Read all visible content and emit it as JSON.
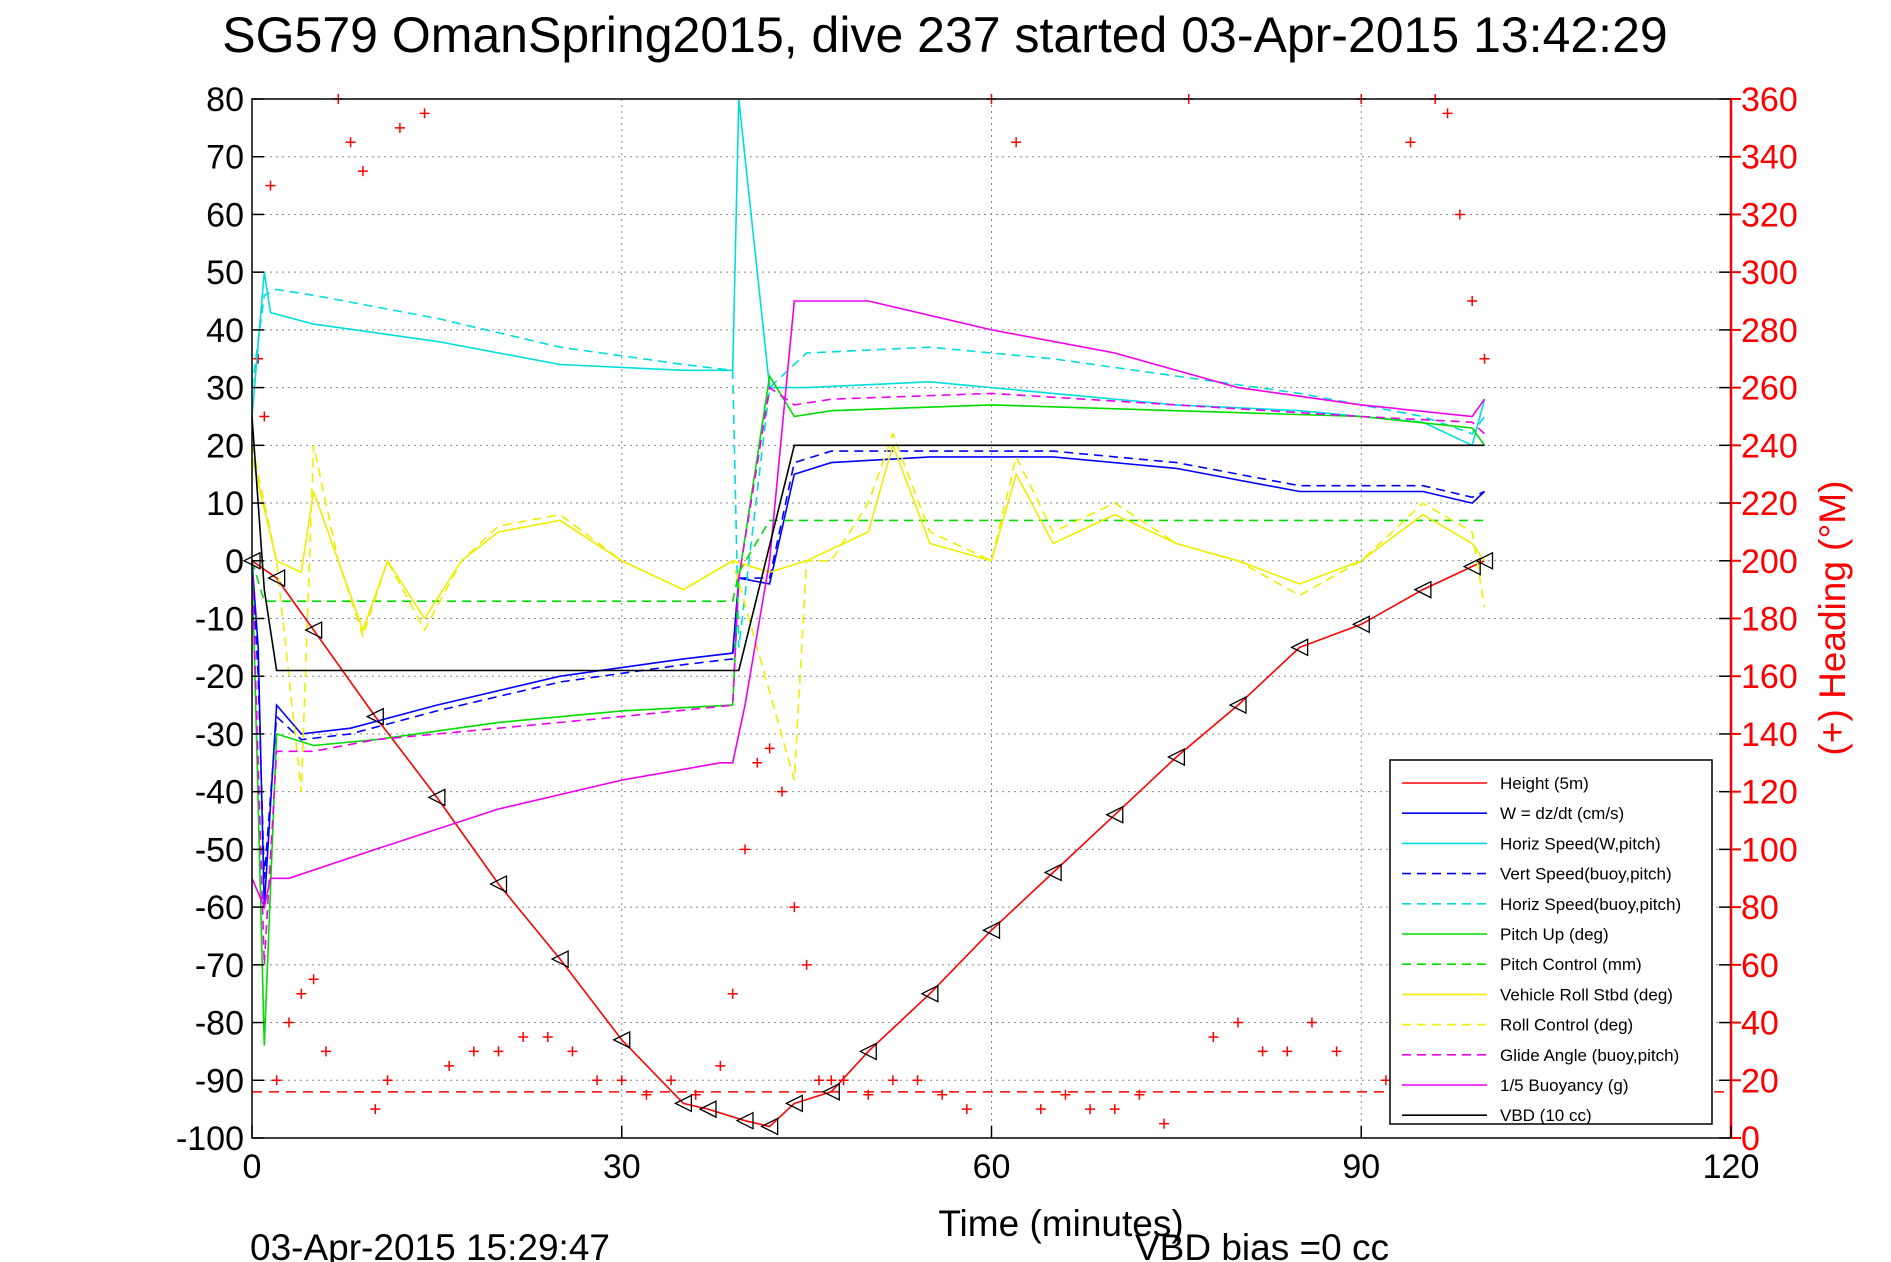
{
  "chart_data": {
    "type": "line",
    "title": "SG579 OmanSpring2015, dive 237 started 03-Apr-2015 13:42:29",
    "xlabel": "Time (minutes)",
    "ylabel_left": "",
    "ylabel_right": "(+) Heading (°M)",
    "footer_left": "03-Apr-2015 15:29:47",
    "footer_right": "VBD bias =0 cc",
    "xlim": [
      0,
      120
    ],
    "ylim_left": [
      -100,
      80
    ],
    "ylim_right": [
      0,
      360
    ],
    "xticks": [
      0,
      30,
      60,
      90,
      120
    ],
    "xtick_labels": [
      "0",
      "30",
      "60",
      "90",
      "120"
    ],
    "yticks_left": [
      80,
      70,
      60,
      50,
      40,
      30,
      20,
      10,
      0,
      -10,
      -20,
      -30,
      -40,
      -50,
      -60,
      -70,
      -80,
      -90,
      -100
    ],
    "ytick_labels_left": [
      "80",
      "70",
      "60",
      "50",
      "40",
      "30",
      "20",
      "10",
      "0",
      "-10",
      "-20",
      "-30",
      "-40",
      "-50",
      "-60",
      "-70",
      "-80",
      "-90",
      "-100"
    ],
    "yticks_right": [
      360,
      340,
      320,
      300,
      280,
      260,
      240,
      220,
      200,
      180,
      160,
      140,
      120,
      100,
      80,
      60,
      40,
      20,
      0
    ],
    "ytick_labels_right": [
      "360",
      "340",
      "320",
      "300",
      "280",
      "260",
      "240",
      "220",
      "200",
      "180",
      "160",
      "140",
      "120",
      "100",
      "80",
      "60",
      "40",
      "20",
      "0"
    ],
    "grid": true,
    "legend_position": "bottom-right",
    "series": [
      {
        "name": "Height (5m)",
        "color": "#ff0000",
        "style": "solid",
        "x": [
          0,
          2,
          5,
          10,
          15,
          20,
          25,
          30,
          35,
          37,
          40,
          42,
          44,
          47,
          50,
          55,
          60,
          65,
          70,
          75,
          80,
          85,
          90,
          95,
          99,
          100
        ],
        "y": [
          0,
          -3,
          -12,
          -27,
          -41,
          -56,
          -69,
          -83,
          -94,
          -95,
          -97,
          -98,
          -94,
          -92,
          -85,
          -75,
          -64,
          -54,
          -44,
          -34,
          -25,
          -15,
          -11,
          -5,
          -1,
          0
        ]
      },
      {
        "name": "W = dz/dt (cm/s)",
        "color": "#0000ff",
        "style": "solid",
        "x": [
          0,
          0.5,
          1,
          2,
          4,
          8,
          15,
          25,
          35,
          39,
          39.5,
          42,
          44,
          47,
          55,
          65,
          75,
          85,
          95,
          99,
          100
        ],
        "y": [
          0,
          -15,
          -60,
          -25,
          -30,
          -29,
          -25,
          -20,
          -17,
          -16,
          -3,
          -4,
          15,
          17,
          18,
          18,
          16,
          12,
          12,
          10,
          12
        ]
      },
      {
        "name": "Horiz Speed(W,pitch)",
        "color": "#00dddd",
        "style": "solid",
        "x": [
          0,
          1,
          1.5,
          5,
          15,
          25,
          35,
          39,
          39.5,
          42,
          45,
          55,
          65,
          75,
          85,
          95,
          99,
          100
        ],
        "y": [
          25,
          50,
          43,
          41,
          38,
          34,
          33,
          33,
          80,
          30,
          30,
          31,
          29,
          27,
          26,
          24,
          20,
          28
        ]
      },
      {
        "name": "Vert Speed(buoy,pitch)",
        "color": "#0000ff",
        "style": "dashed",
        "x": [
          0,
          0.5,
          1,
          2,
          4,
          8,
          15,
          25,
          35,
          39,
          39.5,
          42,
          44,
          47,
          55,
          65,
          75,
          85,
          95,
          99,
          100
        ],
        "y": [
          0,
          -20,
          -55,
          -27,
          -31,
          -30,
          -26,
          -21,
          -18,
          -17,
          -3,
          -3,
          17,
          19,
          19,
          19,
          17,
          13,
          13,
          11,
          12
        ]
      },
      {
        "name": "Horiz Speed(buoy,pitch)",
        "color": "#00dddd",
        "style": "dashed",
        "x": [
          0,
          1,
          2,
          5,
          15,
          25,
          35,
          39,
          39.5,
          42,
          45,
          55,
          65,
          75,
          85,
          95,
          99,
          100
        ],
        "y": [
          30,
          46,
          47,
          46,
          42,
          37,
          34,
          33,
          -15,
          30,
          36,
          37,
          35,
          32,
          29,
          25,
          22,
          25
        ]
      },
      {
        "name": "Pitch Up (deg)",
        "color": "#00dd00",
        "style": "solid",
        "x": [
          0,
          1,
          2,
          5,
          10,
          20,
          30,
          39,
          39.5,
          42,
          44,
          47,
          60,
          75,
          90,
          99,
          100
        ],
        "y": [
          0,
          -84,
          -30,
          -32,
          -31,
          -28,
          -26,
          -25,
          -3,
          32,
          25,
          26,
          27,
          26,
          25,
          23,
          20
        ]
      },
      {
        "name": "Pitch Control (mm)",
        "color": "#00dd00",
        "style": "dashed",
        "x": [
          0,
          1,
          2,
          39,
          39.5,
          42,
          100
        ],
        "y": [
          0,
          -7,
          -7,
          -7,
          -2,
          7,
          7
        ]
      },
      {
        "name": "Vehicle Roll Stbd (deg)",
        "color": "#eeee00",
        "style": "solid",
        "x": [
          0,
          2,
          4,
          5,
          7,
          9,
          11,
          14,
          17,
          20,
          25,
          30,
          35,
          39,
          42,
          45,
          50,
          52,
          55,
          60,
          62,
          65,
          70,
          75,
          80,
          85,
          90,
          95,
          99,
          100
        ],
        "y": [
          18,
          0,
          -2,
          12,
          0,
          -12,
          0,
          -10,
          0,
          5,
          7,
          0,
          -5,
          0,
          -2,
          0,
          5,
          20,
          3,
          0,
          15,
          3,
          8,
          3,
          0,
          -4,
          0,
          8,
          3,
          0
        ]
      },
      {
        "name": "Roll Control (deg)",
        "color": "#eeee00",
        "style": "dashed",
        "x": [
          0,
          2,
          4,
          5,
          7,
          9,
          11,
          14,
          17,
          20,
          25,
          30,
          35,
          39,
          44,
          45,
          47,
          50,
          52,
          55,
          60,
          62,
          65,
          70,
          75,
          80,
          85,
          90,
          95,
          99,
          100
        ],
        "y": [
          20,
          0,
          -40,
          20,
          0,
          -13,
          0,
          -12,
          0,
          6,
          8,
          0,
          -5,
          0,
          -38,
          0,
          0,
          10,
          22,
          5,
          0,
          18,
          5,
          10,
          3,
          0,
          -6,
          0,
          10,
          5,
          -8
        ]
      },
      {
        "name": "Glide Angle (buoy,pitch)",
        "color": "#ee00ee",
        "style": "dashed",
        "x": [
          0,
          1,
          2,
          5,
          10,
          20,
          30,
          39,
          39.5,
          42,
          44,
          47,
          60,
          75,
          90,
          99,
          100
        ],
        "y": [
          0,
          -70,
          -33,
          -33,
          -31,
          -29,
          -27,
          -25,
          -3,
          30,
          27,
          28,
          29,
          27,
          25,
          24,
          22
        ]
      },
      {
        "name": "1/5 Buoyancy (g)",
        "color": "#ee00ee",
        "style": "solid",
        "x": [
          0,
          1,
          1.5,
          3,
          10,
          20,
          30,
          38,
          39,
          40,
          42,
          44,
          50,
          60,
          70,
          80,
          90,
          99,
          100
        ],
        "y": [
          -55,
          -60,
          -55,
          -55,
          -50,
          -43,
          -38,
          -35,
          -35,
          -25,
          0,
          45,
          45,
          40,
          36,
          30,
          27,
          25,
          28
        ]
      },
      {
        "name": "VBD (10 cc)",
        "color": "#000000",
        "style": "solid",
        "x": [
          0,
          1,
          2,
          39,
          39.5,
          44,
          100
        ],
        "y": [
          25,
          -5,
          -19,
          -19,
          -19,
          20,
          20
        ]
      }
    ],
    "heading": {
      "name": "Heading (°M)",
      "color": "#ff0000",
      "marker": "+",
      "x": [
        0.5,
        1,
        1.5,
        2,
        3,
        4,
        5,
        6,
        7,
        8,
        9,
        10,
        11,
        12,
        14,
        16,
        18,
        20,
        22,
        24,
        26,
        28,
        30,
        32,
        34,
        36,
        38,
        39,
        40,
        41,
        42,
        43,
        44,
        45,
        46,
        47,
        48,
        50,
        52,
        54,
        56,
        58,
        60,
        62,
        64,
        66,
        68,
        70,
        72,
        74,
        76,
        78,
        80,
        82,
        84,
        86,
        88,
        90,
        92,
        94,
        96,
        97,
        98,
        99,
        100
      ],
      "y": [
        270,
        250,
        330,
        20,
        40,
        50,
        55,
        30,
        360,
        345,
        335,
        10,
        20,
        350,
        355,
        25,
        30,
        30,
        35,
        35,
        30,
        20,
        20,
        15,
        20,
        15,
        25,
        50,
        100,
        130,
        135,
        120,
        80,
        60,
        20,
        20,
        20,
        15,
        20,
        20,
        15,
        10,
        360,
        345,
        10,
        15,
        10,
        10,
        15,
        5,
        360,
        35,
        40,
        30,
        30,
        40,
        30,
        360,
        20,
        345,
        360,
        355,
        320,
        290,
        270
      ]
    }
  },
  "legend": {
    "entries": [
      "Height (5m)",
      "W = dz/dt (cm/s)",
      "Horiz Speed(W,pitch)",
      "Vert Speed(buoy,pitch)",
      "Horiz Speed(buoy,pitch)",
      "Pitch Up (deg)",
      "Pitch Control (mm)",
      "Vehicle Roll Stbd (deg)",
      "Roll Control (deg)",
      "Glide Angle (buoy,pitch)",
      "1/5 Buoyancy (g)",
      "VBD (10 cc)"
    ],
    "colors": [
      "#ff0000",
      "#0000ff",
      "#00dddd",
      "#0000ff",
      "#00dddd",
      "#00dd00",
      "#00dd00",
      "#eeee00",
      "#eeee00",
      "#ee00ee",
      "#ee00ee",
      "#000000"
    ],
    "styles": [
      "solid",
      "solid",
      "solid",
      "dashed",
      "dashed",
      "solid",
      "dashed",
      "solid",
      "dashed",
      "dashed",
      "solid",
      "solid"
    ]
  },
  "surface_depth_line": {
    "color": "#ff0000",
    "style": "dashed",
    "y": -92
  }
}
